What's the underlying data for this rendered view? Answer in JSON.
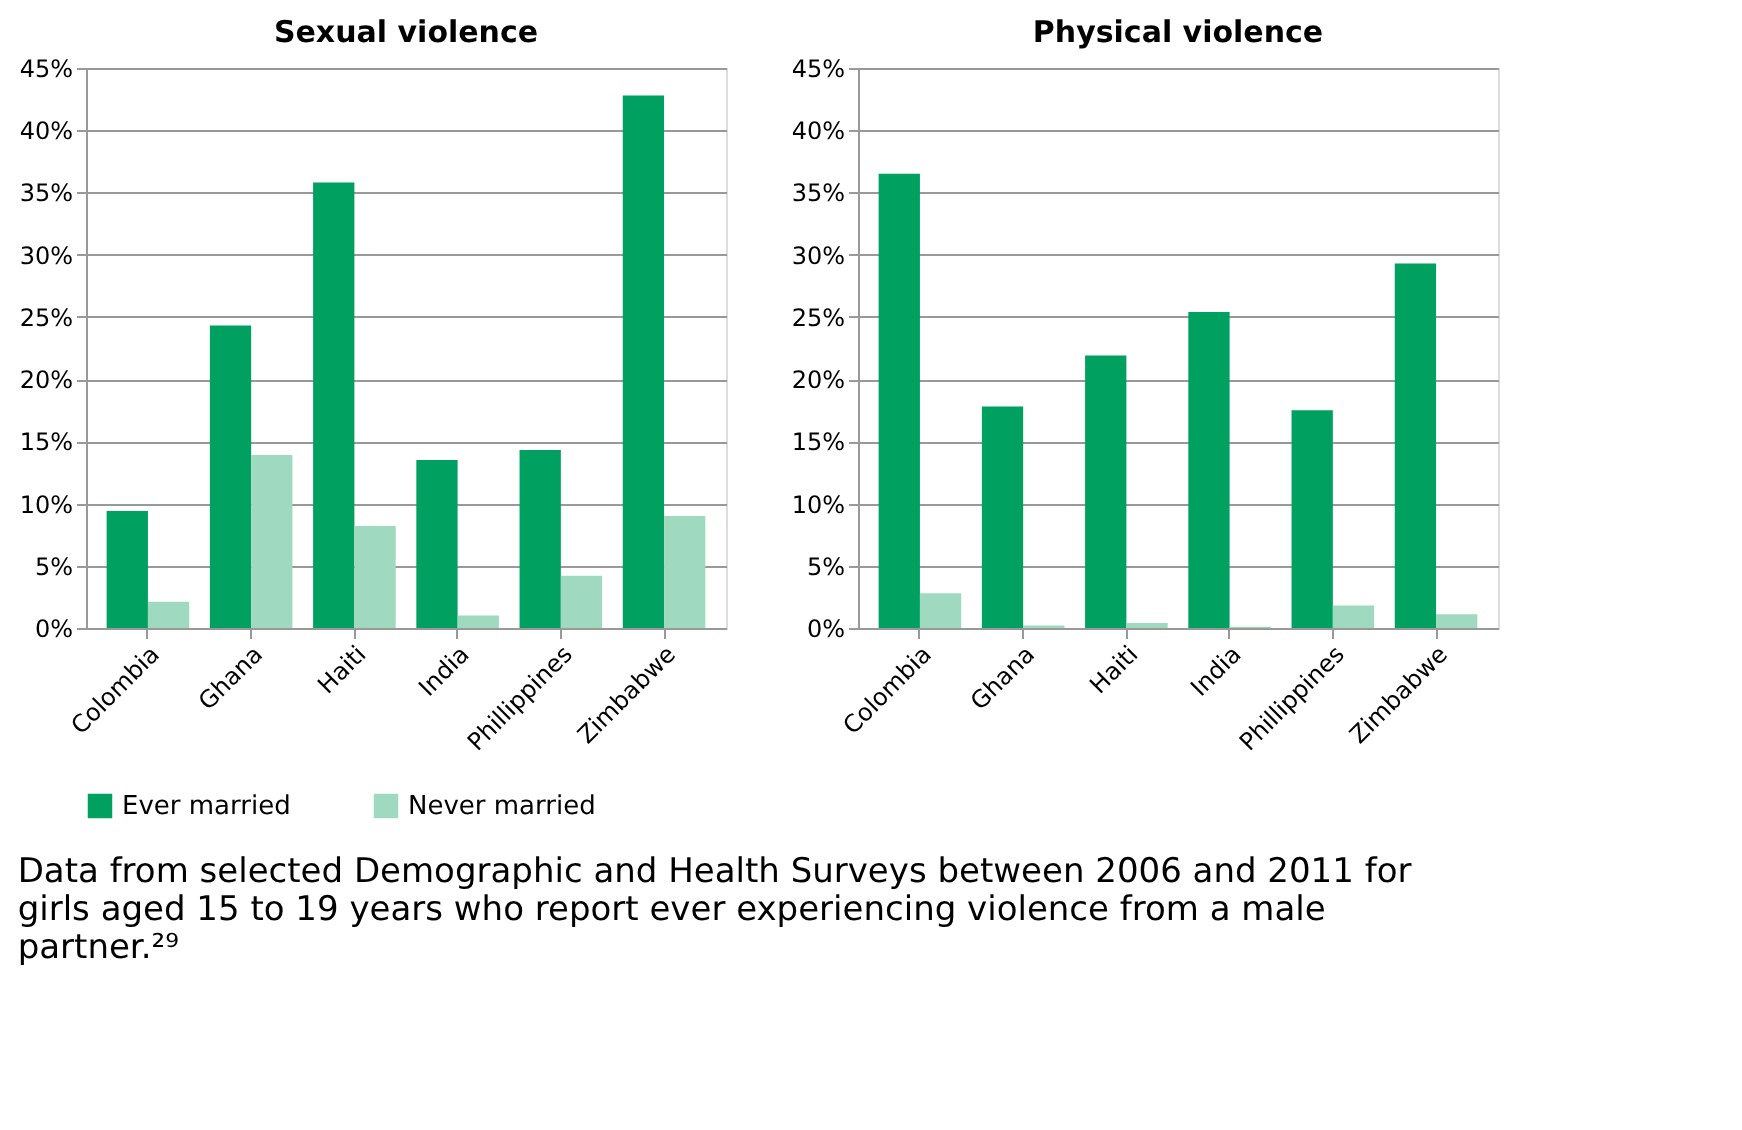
{
  "chart_data": [
    {
      "type": "bar",
      "title": "Sexual violence",
      "categories": [
        "Colombia",
        "Ghana",
        "Haiti",
        "India",
        "Phillippines",
        "Zimbabwe"
      ],
      "series": [
        {
          "name": "Ever married",
          "color": "#00a060",
          "values": [
            9.4,
            24.3,
            35.8,
            13.5,
            14.3,
            42.8
          ]
        },
        {
          "name": "Never married",
          "color": "#9fd9bf",
          "values": [
            2.1,
            13.9,
            8.2,
            1.0,
            4.2,
            9.0
          ]
        }
      ],
      "ylim": [
        0,
        45
      ],
      "yticks": [
        {
          "value": 0,
          "label": "0%"
        },
        {
          "value": 5,
          "label": "5%"
        },
        {
          "value": 10,
          "label": "10%"
        },
        {
          "value": 15,
          "label": "15%"
        },
        {
          "value": 20,
          "label": "20%"
        },
        {
          "value": 25,
          "label": "25%"
        },
        {
          "value": 30,
          "label": "30%"
        },
        {
          "value": 35,
          "label": "35%"
        },
        {
          "value": 40,
          "label": "40%"
        },
        {
          "value": 45,
          "label": "45%"
        }
      ],
      "grid": "y",
      "legend": "bottom left",
      "annotations": [
        "Data from selected Demographic and Health Surveys between 2006 and 2011 for girls aged 15 to 19 years who report ever experiencing violence from a male partner.²⁹"
      ]
    },
    {
      "type": "bar",
      "title": "Physical violence",
      "categories": [
        "Colombia",
        "Ghana",
        "Haiti",
        "India",
        "Phillippines",
        "Zimbabwe"
      ],
      "series": [
        {
          "name": "Ever married",
          "color": "#00a060",
          "values": [
            36.5,
            17.8,
            21.9,
            25.4,
            17.5,
            29.3
          ]
        },
        {
          "name": "Never married",
          "color": "#9fd9bf",
          "values": [
            2.8,
            0.2,
            0.4,
            0.1,
            1.8,
            1.1
          ]
        }
      ],
      "ylim": [
        0,
        45
      ],
      "yticks": [
        {
          "value": 0,
          "label": "0%"
        },
        {
          "value": 5,
          "label": "5%"
        },
        {
          "value": 10,
          "label": "10%"
        },
        {
          "value": 15,
          "label": "15%"
        },
        {
          "value": 20,
          "label": "20%"
        },
        {
          "value": 25,
          "label": "25%"
        },
        {
          "value": 30,
          "label": "30%"
        },
        {
          "value": 35,
          "label": "35%"
        },
        {
          "value": 40,
          "label": "40%"
        },
        {
          "value": 45,
          "label": "45%"
        }
      ],
      "grid": "y"
    }
  ]
}
